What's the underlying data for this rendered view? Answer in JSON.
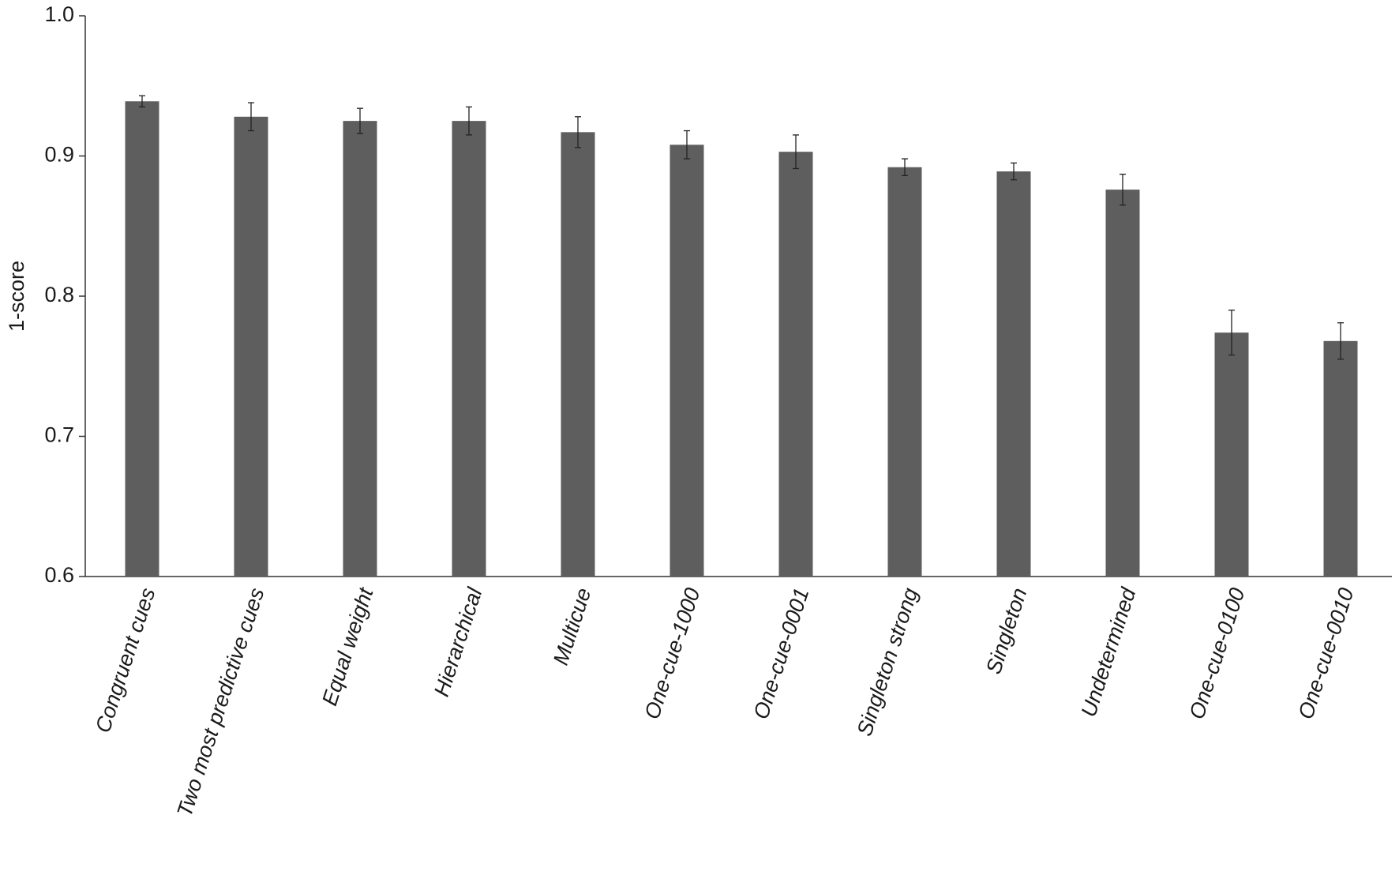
{
  "chart_data": {
    "type": "bar",
    "y_label": "1-score",
    "categories": [
      "Congruent cues",
      "Two most predictive cues",
      "Equal weight",
      "Hierarchical",
      "Multicue",
      "One-cue-1000",
      "One-cue-0001",
      "Singleton strong",
      "Singleton",
      "Undetermined",
      "One-cue-0100",
      "One-cue-0010"
    ],
    "values": [
      0.939,
      0.928,
      0.925,
      0.925,
      0.917,
      0.908,
      0.903,
      0.892,
      0.889,
      0.876,
      0.774,
      0.768
    ],
    "errors": [
      0.004,
      0.01,
      0.009,
      0.01,
      0.011,
      0.01,
      0.012,
      0.006,
      0.006,
      0.011,
      0.016,
      0.013
    ],
    "color": "#5e5e5e",
    "ylim": [
      0.6,
      1.0
    ],
    "yticks": [
      {
        "value": 0.6,
        "label": "0.6"
      },
      {
        "value": 0.7,
        "label": "0.7"
      },
      {
        "value": 0.8,
        "label": "0.8"
      },
      {
        "value": 0.9,
        "label": "0.9"
      },
      {
        "value": 1.0,
        "label": "1.0"
      }
    ]
  }
}
